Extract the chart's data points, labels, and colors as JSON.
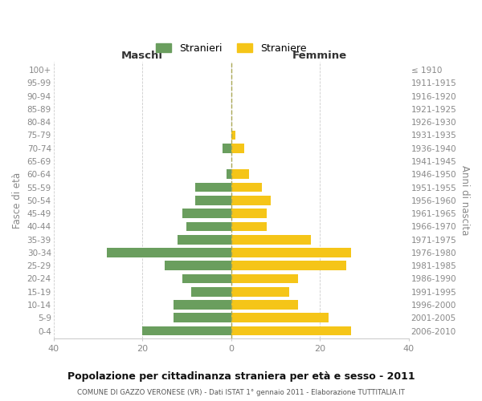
{
  "age_groups": [
    "100+",
    "95-99",
    "90-94",
    "85-89",
    "80-84",
    "75-79",
    "70-74",
    "65-69",
    "60-64",
    "55-59",
    "50-54",
    "45-49",
    "40-44",
    "35-39",
    "30-34",
    "25-29",
    "20-24",
    "15-19",
    "10-14",
    "5-9",
    "0-4"
  ],
  "birth_years": [
    "≤ 1910",
    "1911-1915",
    "1916-1920",
    "1921-1925",
    "1926-1930",
    "1931-1935",
    "1936-1940",
    "1941-1945",
    "1946-1950",
    "1951-1955",
    "1956-1960",
    "1961-1965",
    "1966-1970",
    "1971-1975",
    "1976-1980",
    "1981-1985",
    "1986-1990",
    "1991-1995",
    "1996-2000",
    "2001-2005",
    "2006-2010"
  ],
  "maschi": [
    0,
    0,
    0,
    0,
    0,
    0,
    2,
    0,
    1,
    8,
    8,
    11,
    10,
    12,
    28,
    15,
    11,
    9,
    13,
    13,
    20
  ],
  "femmine": [
    0,
    0,
    0,
    0,
    0,
    1,
    3,
    0,
    4,
    7,
    9,
    8,
    8,
    18,
    27,
    26,
    15,
    13,
    15,
    22,
    27
  ],
  "color_maschi": "#6a9e5e",
  "color_femmine": "#f5c518",
  "title": "Popolazione per cittadinanza straniera per età e sesso - 2011",
  "subtitle": "COMUNE DI GAZZO VERONESE (VR) - Dati ISTAT 1° gennaio 2011 - Elaborazione TUTTITALIA.IT",
  "ylabel_left": "Fasce di età",
  "ylabel_right": "Anni di nascita",
  "header_left": "Maschi",
  "header_right": "Femmine",
  "legend_maschi": "Stranieri",
  "legend_femmine": "Straniere",
  "xlim": 40,
  "bg_color": "#ffffff",
  "grid_color": "#cccccc",
  "tick_color": "#888888",
  "header_color": "#333333",
  "title_color": "#111111",
  "subtitle_color": "#555555",
  "dashed_color": "#aaa855"
}
